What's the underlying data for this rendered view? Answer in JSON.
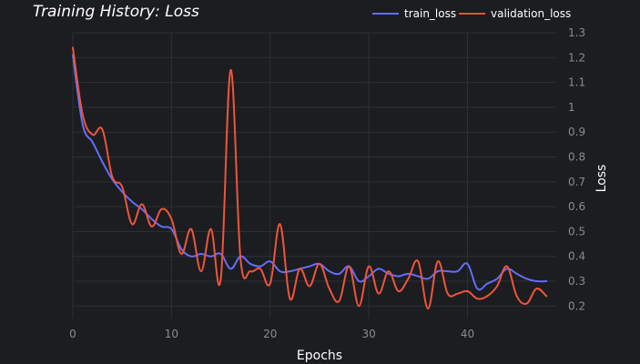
{
  "chart_data": {
    "type": "line",
    "title": "Training History: Loss",
    "xlabel": "Epochs",
    "ylabel": "Loss",
    "xlim": [
      0,
      49
    ],
    "ylim": [
      0.15,
      1.3
    ],
    "grid": true,
    "legend_position": "top-right",
    "x_ticks": [
      0,
      10,
      20,
      30,
      40
    ],
    "y_ticks": [
      0.2,
      0.3,
      0.4,
      0.5,
      0.6,
      0.7,
      0.8,
      0.9,
      1,
      1.1,
      1.2,
      1.3
    ],
    "background_color": "#1b1d20",
    "series": [
      {
        "name": "train_loss",
        "color": "#636efa",
        "x": [
          0,
          1,
          2,
          3,
          4,
          5,
          6,
          7,
          8,
          9,
          10,
          11,
          12,
          13,
          14,
          15,
          16,
          17,
          18,
          19,
          20,
          21,
          22,
          23,
          24,
          25,
          26,
          27,
          28,
          29,
          30,
          31,
          32,
          33,
          34,
          35,
          36,
          37,
          38,
          39,
          40,
          41,
          42,
          43,
          44,
          45,
          46,
          47,
          48
        ],
        "values": [
          1.21,
          0.93,
          0.86,
          0.78,
          0.71,
          0.66,
          0.62,
          0.59,
          0.55,
          0.52,
          0.51,
          0.43,
          0.4,
          0.41,
          0.4,
          0.41,
          0.35,
          0.4,
          0.37,
          0.36,
          0.38,
          0.34,
          0.34,
          0.35,
          0.36,
          0.37,
          0.34,
          0.33,
          0.36,
          0.3,
          0.32,
          0.35,
          0.33,
          0.32,
          0.33,
          0.32,
          0.31,
          0.34,
          0.34,
          0.34,
          0.37,
          0.27,
          0.29,
          0.31,
          0.35,
          0.33,
          0.31,
          0.3,
          0.3
        ]
      },
      {
        "name": "validation_loss",
        "color": "#ef553b",
        "x": [
          0,
          1,
          2,
          3,
          4,
          5,
          6,
          7,
          8,
          9,
          10,
          11,
          12,
          13,
          14,
          15,
          16,
          17,
          18,
          19,
          20,
          21,
          22,
          23,
          24,
          25,
          26,
          27,
          28,
          29,
          30,
          31,
          32,
          33,
          34,
          35,
          36,
          37,
          38,
          39,
          40,
          41,
          42,
          43,
          44,
          45,
          46,
          47,
          48
        ],
        "values": [
          1.24,
          0.97,
          0.89,
          0.91,
          0.72,
          0.68,
          0.53,
          0.61,
          0.52,
          0.59,
          0.55,
          0.41,
          0.51,
          0.34,
          0.51,
          0.31,
          1.15,
          0.39,
          0.34,
          0.35,
          0.29,
          0.53,
          0.23,
          0.35,
          0.28,
          0.37,
          0.27,
          0.22,
          0.36,
          0.2,
          0.36,
          0.25,
          0.34,
          0.26,
          0.31,
          0.38,
          0.19,
          0.38,
          0.25,
          0.25,
          0.26,
          0.23,
          0.24,
          0.28,
          0.36,
          0.24,
          0.21,
          0.27,
          0.24
        ]
      }
    ]
  }
}
